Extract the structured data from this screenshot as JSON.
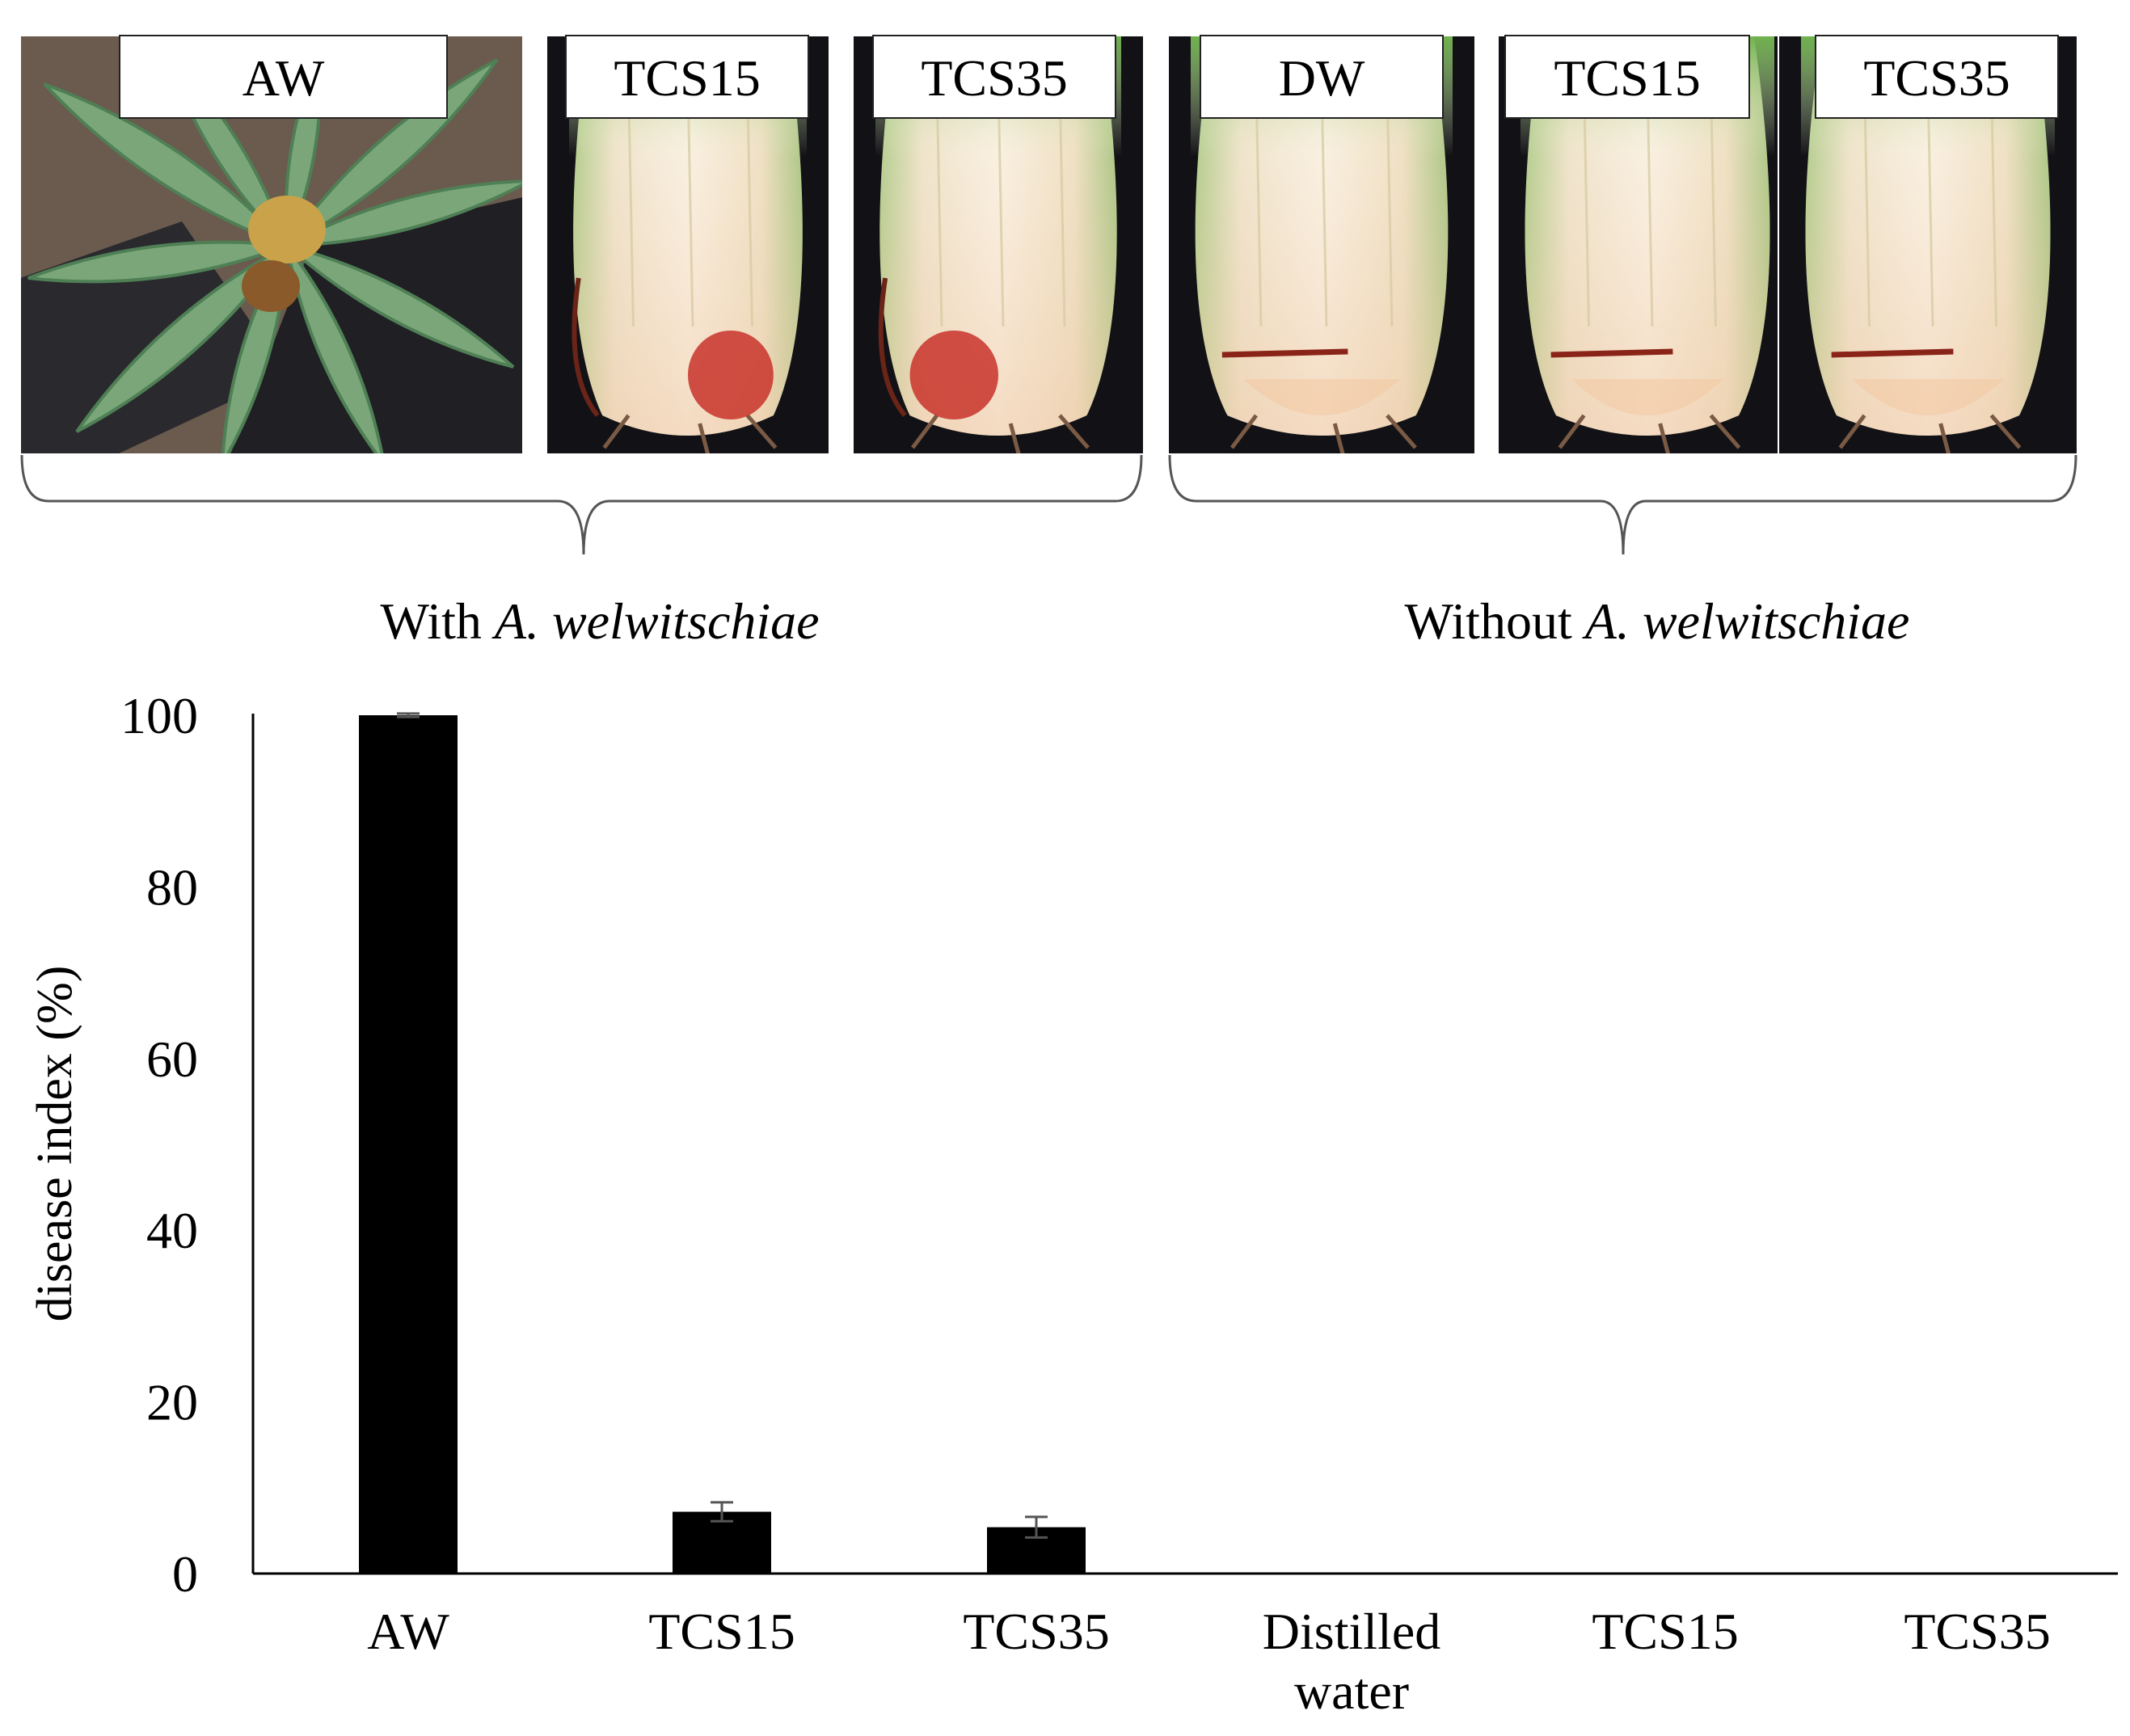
{
  "photo_panels": [
    {
      "label": "AW",
      "scene": "rosette",
      "group": "with"
    },
    {
      "label": "TCS15",
      "scene": "rot",
      "group": "with"
    },
    {
      "label": "TCS35",
      "scene": "rot",
      "group": "with"
    },
    {
      "label": "DW",
      "scene": "cut",
      "group": "without"
    },
    {
      "label": "TCS15",
      "scene": "cut",
      "group": "without"
    },
    {
      "label": "TCS35",
      "scene": "cut",
      "group": "without"
    }
  ],
  "groups": {
    "with": {
      "prefix": "With ",
      "italic": "A. welwitschiae"
    },
    "without": {
      "prefix": "Without ",
      "italic": "A. welwitschiae"
    }
  },
  "colors": {
    "bar": "#000000",
    "leaf": "#7aa67a",
    "leaf_dark": "#4f7f55",
    "soil": "#6b5a4e",
    "mulch": "#2a2a2e",
    "stem": "#f4ead8",
    "stem_shadow": "#d9cda5",
    "stem_green": "#9fc97e",
    "rot": "#c8322a",
    "cut_line": "#8a2418",
    "photo_bg": "#121216",
    "error": "#555555"
  },
  "chart_data": {
    "type": "bar",
    "categories": [
      "AW",
      "TCS15",
      "TCS35",
      "Distilled water",
      "TCS15",
      "TCS35"
    ],
    "category_lines": [
      [
        "AW"
      ],
      [
        "TCS15"
      ],
      [
        "TCS35"
      ],
      [
        "Distilled",
        "water"
      ],
      [
        "TCS15"
      ],
      [
        "TCS35"
      ]
    ],
    "values": [
      100,
      7.2,
      5.4,
      0,
      0,
      0
    ],
    "errors": [
      0.2,
      1.1,
      1.2,
      0,
      0,
      0
    ],
    "ylabel": "disease index (%)",
    "xlabel": "",
    "ylim": [
      0,
      100
    ],
    "yticks": [
      0,
      20,
      40,
      60,
      80,
      100
    ],
    "grid": false,
    "legend": "none"
  }
}
